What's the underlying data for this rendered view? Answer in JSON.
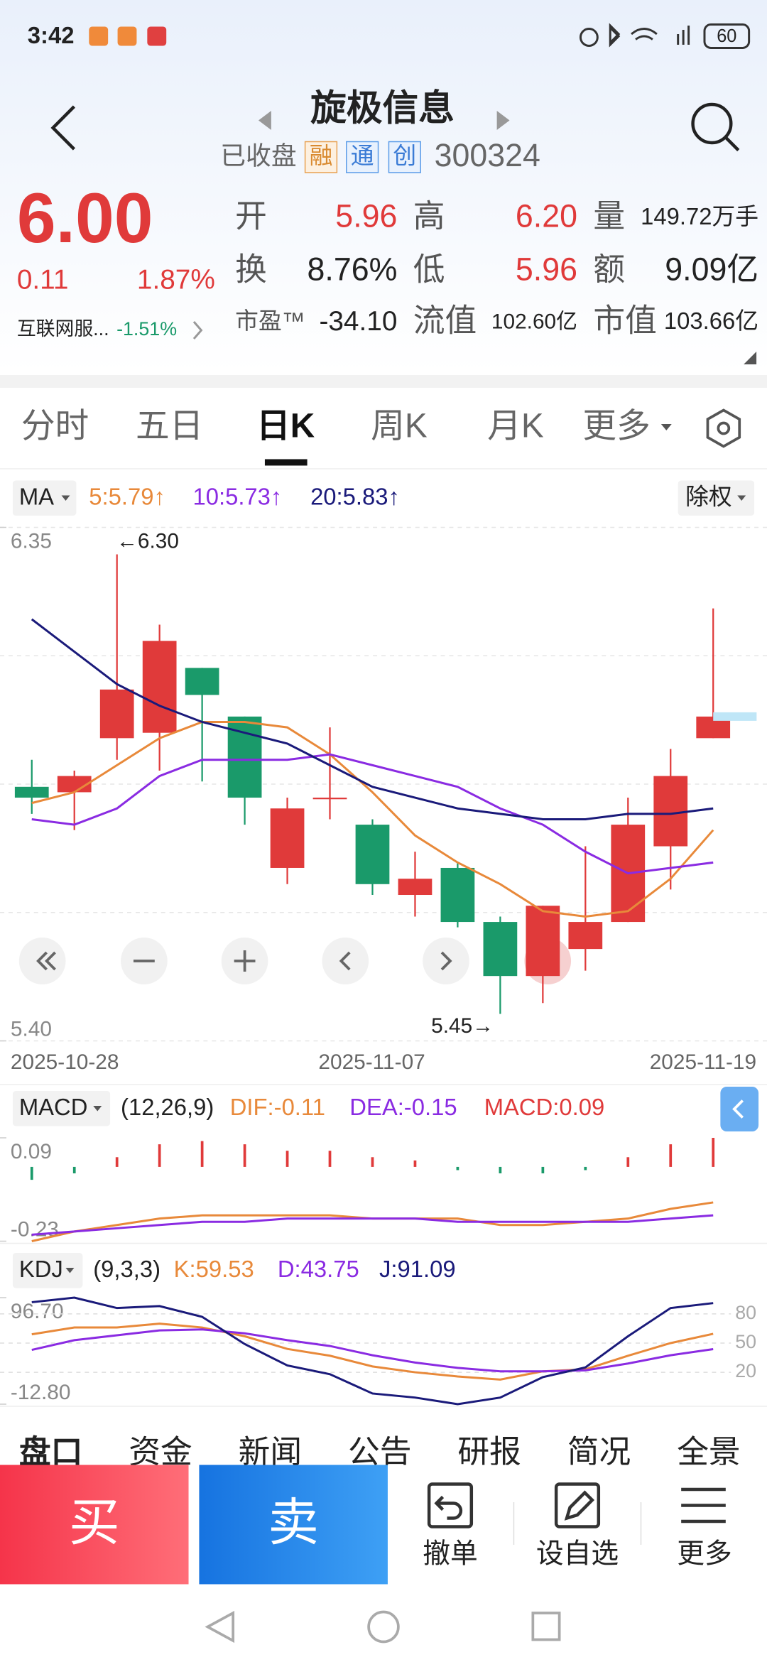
{
  "status_bar": {
    "time": "3:42",
    "battery": "60"
  },
  "header": {
    "title": "旋极信息",
    "status": "已收盘",
    "badges": [
      "融",
      "通",
      "创"
    ],
    "code": "300324"
  },
  "quote": {
    "price": "6.00",
    "change": "0.11",
    "change_pct": "1.87%",
    "sector": "互联网服...",
    "sector_change": "-1.51%",
    "fields": [
      {
        "label": "开",
        "value": "5.96"
      },
      {
        "label": "高",
        "value": "6.20"
      },
      {
        "label": "量",
        "value": "149.72万手"
      },
      {
        "label": "换",
        "value": "8.76%"
      },
      {
        "label": "低",
        "value": "5.96"
      },
      {
        "label": "额",
        "value": "9.09亿"
      },
      {
        "label": "市盈™",
        "value": "-34.10"
      },
      {
        "label": "流值",
        "value": "102.60亿"
      },
      {
        "label": "市值",
        "value": "103.66亿"
      }
    ]
  },
  "tabs": [
    "分时",
    "五日",
    "日K",
    "周K",
    "月K",
    "更多"
  ],
  "kline": {
    "type": "candlestick",
    "indicator": "MA",
    "adjust": "除权",
    "ylim": [
      5.4,
      6.35
    ],
    "yticks": [
      6.35,
      {
        "value": 5.4,
        "label": "5.40"
      }
    ],
    "high_marker": "←6.30",
    "low_marker": "5.45→",
    "dates": [
      "2025-10-28",
      "2025-11-07",
      "2025-11-19"
    ],
    "candles": {
      "open": [
        5.87,
        5.86,
        5.96,
        5.97,
        6.09,
        6.0,
        5.72,
        5.85,
        5.8,
        5.67,
        5.72,
        5.62,
        5.52,
        5.57,
        5.62,
        5.76,
        5.96
      ],
      "high": [
        5.92,
        5.9,
        6.3,
        6.17,
        6.09,
        6.0,
        5.85,
        5.98,
        5.81,
        5.75,
        5.73,
        5.63,
        5.65,
        5.76,
        5.85,
        5.94,
        6.2
      ],
      "low": [
        5.82,
        5.79,
        5.92,
        5.9,
        5.88,
        5.8,
        5.69,
        5.81,
        5.67,
        5.63,
        5.61,
        5.45,
        5.47,
        5.53,
        5.62,
        5.68,
        5.96
      ],
      "close": [
        5.85,
        5.89,
        6.05,
        6.14,
        6.04,
        5.85,
        5.83,
        5.85,
        5.69,
        5.7,
        5.62,
        5.52,
        5.65,
        5.62,
        5.8,
        5.89,
        6.0
      ]
    },
    "up_color": "#e03a3a",
    "down_color": "#1a9a6a",
    "series": [
      {
        "name": "5:5.79↑",
        "color": "#e8893a",
        "values": [
          5.84,
          5.86,
          5.91,
          5.96,
          5.99,
          5.99,
          5.98,
          5.93,
          5.86,
          5.78,
          5.73,
          5.69,
          5.64,
          5.63,
          5.64,
          5.7,
          5.79
        ]
      },
      {
        "name": "10:5.73↑",
        "color": "#8a2be2",
        "values": [
          5.81,
          5.8,
          5.83,
          5.89,
          5.92,
          5.92,
          5.92,
          5.93,
          5.91,
          5.89,
          5.87,
          5.83,
          5.8,
          5.75,
          5.71,
          5.72,
          5.73
        ]
      },
      {
        "name": "20:5.83↑",
        "color": "#1a1a7a",
        "values": [
          6.18,
          6.12,
          6.06,
          6.02,
          5.99,
          5.97,
          5.95,
          5.91,
          5.87,
          5.85,
          5.83,
          5.82,
          5.81,
          5.81,
          5.82,
          5.82,
          5.83
        ]
      }
    ]
  },
  "macd": {
    "name": "MACD",
    "params": "(12,26,9)",
    "ylim": [
      -0.23,
      0.09
    ],
    "yticks": [
      0.09,
      -0.23
    ],
    "hist": {
      "name": "MACD:0.09",
      "values": [
        -0.04,
        -0.02,
        0.03,
        0.07,
        0.08,
        0.07,
        0.05,
        0.05,
        0.03,
        0.02,
        -0.01,
        -0.02,
        -0.02,
        -0.01,
        0.03,
        0.07,
        0.09
      ]
    },
    "series": [
      {
        "name": "DIF:-0.11",
        "color": "#e8893a",
        "values": [
          -0.23,
          -0.2,
          -0.18,
          -0.16,
          -0.15,
          -0.15,
          -0.15,
          -0.15,
          -0.16,
          -0.16,
          -0.16,
          -0.18,
          -0.18,
          -0.17,
          -0.16,
          -0.13,
          -0.11
        ]
      },
      {
        "name": "DEA:-0.15",
        "color": "#8a2be2",
        "values": [
          -0.21,
          -0.2,
          -0.19,
          -0.18,
          -0.17,
          -0.17,
          -0.16,
          -0.16,
          -0.16,
          -0.16,
          -0.17,
          -0.17,
          -0.17,
          -0.17,
          -0.17,
          -0.16,
          -0.15
        ]
      }
    ]
  },
  "kdj": {
    "name": "KDJ",
    "params": "(9,3,3)",
    "ylim": [
      -12.8,
      96.7
    ],
    "yticks": [
      {
        "value": 96.7,
        "label": "96.70"
      },
      {
        "value": -12.8,
        "label": "-12.80"
      }
    ],
    "right_ticks": [
      80,
      50,
      20
    ],
    "series": [
      {
        "name": "K:59.53",
        "color": "#e8893a",
        "values": [
          59,
          66,
          66,
          70,
          66,
          57,
          44,
          37,
          26,
          20,
          15.7,
          12.5,
          21,
          23,
          37,
          50,
          59.53
        ]
      },
      {
        "name": "D:43.75",
        "color": "#8a2be2",
        "values": [
          43,
          53,
          58,
          63,
          64,
          60,
          53,
          47,
          37.5,
          30,
          24.5,
          21,
          21,
          22,
          29,
          37.5,
          43.75
        ]
      },
      {
        "name": "J:91.09",
        "color": "#1a1a7a",
        "values": [
          92,
          96.7,
          86,
          88,
          77,
          49,
          27,
          18,
          -1.8,
          -6,
          -12.8,
          -6,
          15,
          25,
          57,
          86,
          91.09
        ]
      }
    ]
  },
  "bottom_tabs": [
    "盘口",
    "资金",
    "新闻",
    "公告",
    "研报",
    "简况",
    "全景"
  ],
  "actions": {
    "buy": "买",
    "sell": "卖",
    "items": [
      "撤单",
      "设自选",
      "更多"
    ]
  }
}
